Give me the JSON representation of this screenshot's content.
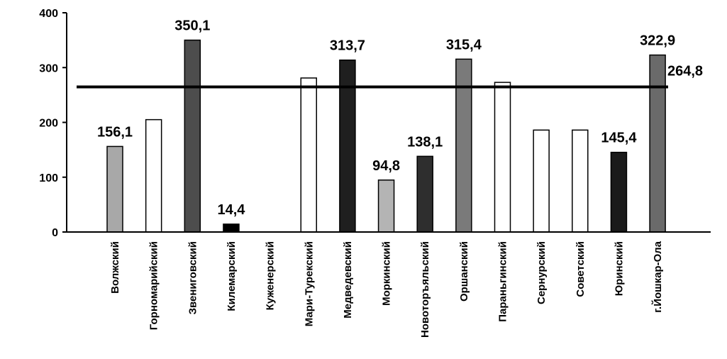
{
  "chart_data": {
    "type": "bar",
    "title": "",
    "xlabel": "",
    "ylabel": "",
    "ylim": [
      0,
      400
    ],
    "yticks": [
      0,
      100,
      200,
      300,
      400
    ],
    "grid": false,
    "legend": "none",
    "categories": [
      "Волжский",
      "Горномарийский",
      "Звениговский",
      "Килемарский",
      "Куженерский",
      "Мари-Турекский",
      "Медведевский",
      "Моркинский",
      "Новоторъяльский",
      "Оршанский",
      "Параньгинский",
      "Сернурский",
      "Советский",
      "Юринский",
      "г.Йошкар-Ола"
    ],
    "values": [
      156.1,
      205,
      350.1,
      14.4,
      0,
      281,
      313.7,
      94.8,
      138.1,
      315.4,
      273,
      186,
      186,
      145.4,
      322.9
    ],
    "data_labels": [
      "156,1",
      "",
      "350,1",
      "14,4",
      "",
      "",
      "313,7",
      "94,8",
      "138,1",
      "315,4",
      "",
      "",
      "",
      "145,4",
      "322,9"
    ],
    "bar_fills": [
      "#a8a8a8",
      "#ffffff",
      "#4d4d4d",
      "#000000",
      "#ffffff",
      "#ffffff",
      "#1f1f1f",
      "#b4b4b4",
      "#2e2e2e",
      "#7a7a7a",
      "#ffffff",
      "#ffffff",
      "#ffffff",
      "#1a1a1a",
      "#6a6a6a"
    ],
    "reference_line": {
      "value": 264.8,
      "label": "264,8"
    }
  }
}
